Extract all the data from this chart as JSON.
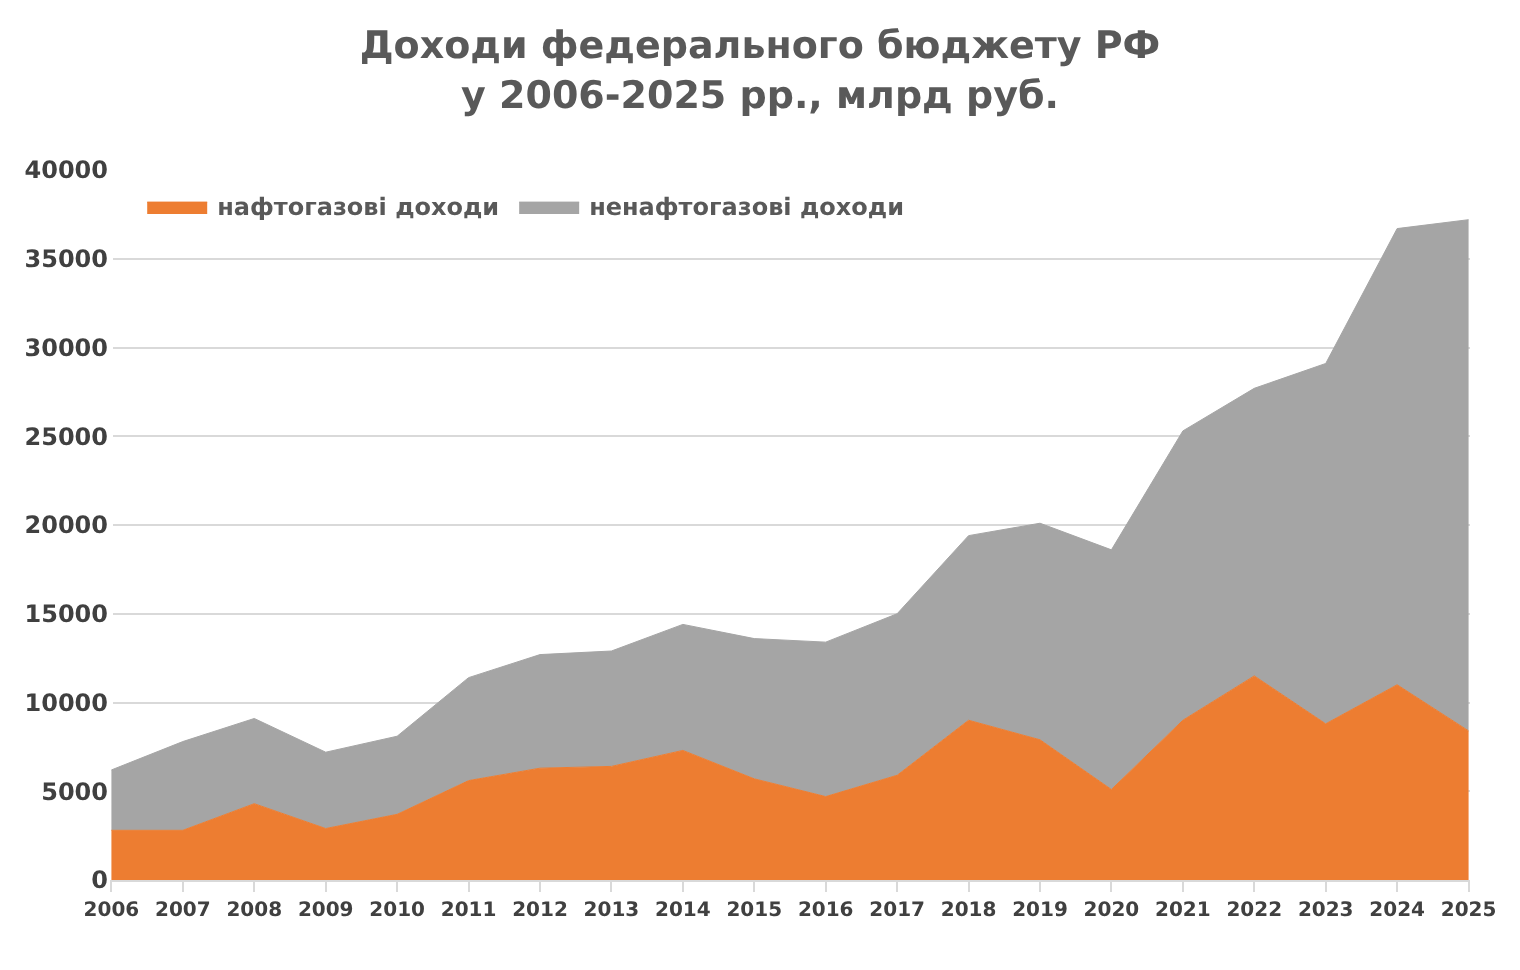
{
  "chart_data": {
    "type": "area",
    "stacked": true,
    "title": "Доходи федерального бюджету РФ\nу 2006-2025 рр., млрд руб.",
    "categories": [
      "2006",
      "2007",
      "2008",
      "2009",
      "2010",
      "2011",
      "2012",
      "2013",
      "2014",
      "2015",
      "2016",
      "2017",
      "2018",
      "2019",
      "2020",
      "2021",
      "2022",
      "2023",
      "2024",
      "2025"
    ],
    "series": [
      {
        "name": "нафтогазові доходи",
        "color": "#ed7d31",
        "values": [
          2800,
          2800,
          4300,
          2900,
          3700,
          5600,
          6300,
          6400,
          7300,
          5700,
          4700,
          5900,
          9000,
          7900,
          5100,
          9000,
          11500,
          8800,
          11000,
          8400
        ]
      },
      {
        "name": "ненафтогазові доходи",
        "color": "#a5a5a5",
        "values": [
          3400,
          5000,
          4800,
          4300,
          4400,
          5800,
          6400,
          6500,
          7100,
          7900,
          8700,
          9100,
          10400,
          12200,
          13500,
          16300,
          16200,
          20300,
          25700,
          28800
        ]
      }
    ],
    "ylim": [
      0,
      40000
    ],
    "yticks": [
      0,
      5000,
      10000,
      15000,
      20000,
      25000,
      30000,
      35000,
      40000
    ],
    "grid": "y",
    "legend": "top left"
  }
}
